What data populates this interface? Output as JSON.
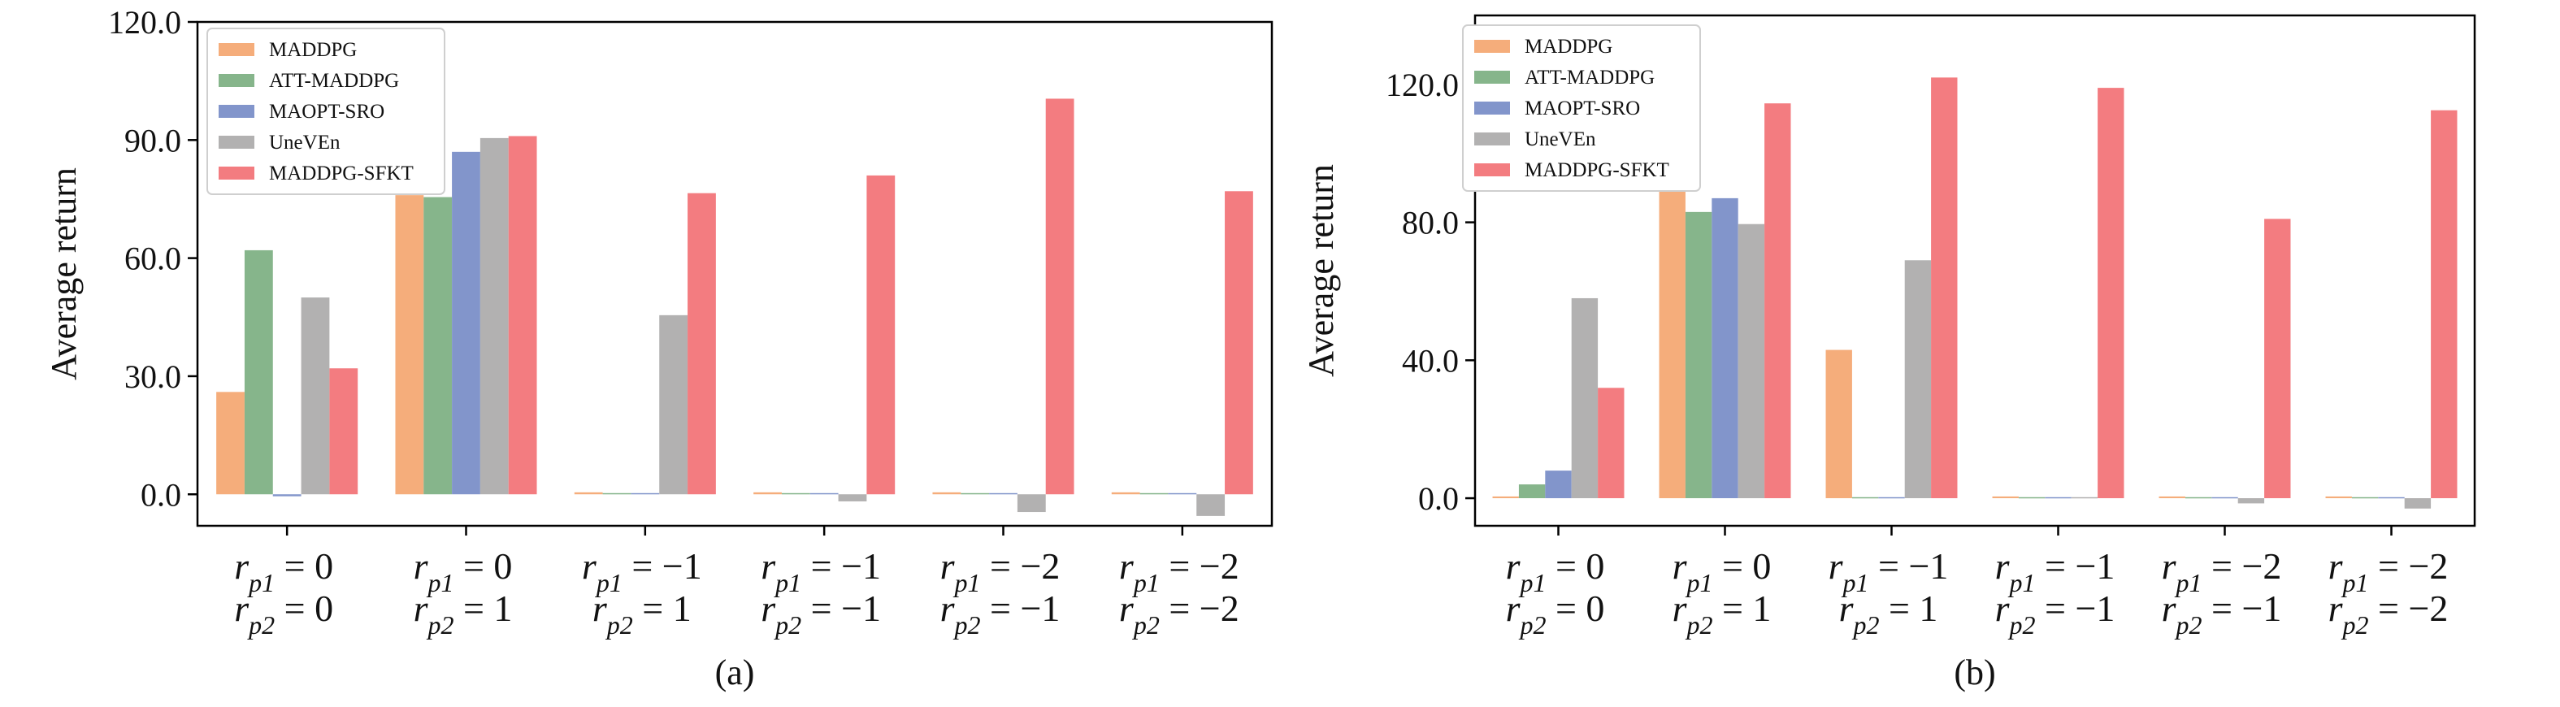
{
  "colors": {
    "MADDPG": "#f5ad7b",
    "ATT-MADDPG": "#86b58b",
    "MAOPT-SRO": "#8295cb",
    "UneVEn": "#b2b1b1",
    "MADDPG-SFKT": "#f37c80"
  },
  "category_labels": [
    {
      "l1": {
        "v": "r",
        "s": "p1",
        "rest": " = 0"
      },
      "l2": {
        "v": "r",
        "s": "p2",
        "rest": " = 0"
      }
    },
    {
      "l1": {
        "v": "r",
        "s": "p1",
        "rest": " = 0"
      },
      "l2": {
        "v": "r",
        "s": "p2",
        "rest": " = 1"
      }
    },
    {
      "l1": {
        "v": "r",
        "s": "p1",
        "rest": " = −1"
      },
      "l2": {
        "v": "r",
        "s": "p2",
        "rest": " = 1"
      }
    },
    {
      "l1": {
        "v": "r",
        "s": "p1",
        "rest": " = −1"
      },
      "l2": {
        "v": "r",
        "s": "p2",
        "rest": " = −1"
      }
    },
    {
      "l1": {
        "v": "r",
        "s": "p1",
        "rest": " = −2"
      },
      "l2": {
        "v": "r",
        "s": "p2",
        "rest": " = −1"
      }
    },
    {
      "l1": {
        "v": "r",
        "s": "p1",
        "rest": " = −2"
      },
      "l2": {
        "v": "r",
        "s": "p2",
        "rest": " = −2"
      }
    }
  ],
  "chart_data": [
    {
      "type": "bar",
      "panel_label": "(a)",
      "ylabel": "Average return",
      "ylim": [
        -8,
        120
      ],
      "yticks": [
        0,
        30,
        60,
        90,
        120
      ],
      "ytick_labels": [
        "0.0",
        "30.0",
        "60.0",
        "90.0",
        "120.0"
      ],
      "grid": false,
      "legend": "top-left",
      "categories": [
        "r_p1 = 0, r_p2 = 0",
        "r_p1 = 0, r_p2 = 1",
        "r_p1 = −1, r_p2 = 1",
        "r_p1 = −1, r_p2 = −1",
        "r_p1 = −2, r_p2 = −1",
        "r_p1 = −2, r_p2 = −2"
      ],
      "series": [
        {
          "name": "MADDPG",
          "values": [
            26,
            76,
            0.5,
            0.5,
            0.5,
            0.5
          ]
        },
        {
          "name": "ATT-MADDPG",
          "values": [
            62,
            75.5,
            0.3,
            0.3,
            0.3,
            0.3
          ]
        },
        {
          "name": "MAOPT-SRO",
          "values": [
            -0.5,
            87,
            0.3,
            0.3,
            0.3,
            0.3
          ]
        },
        {
          "name": "UneVEn",
          "values": [
            50,
            90.5,
            45.5,
            -1.8,
            -4.5,
            -5.5
          ]
        },
        {
          "name": "MADDPG-SFKT",
          "values": [
            32,
            91,
            76.5,
            81,
            100.5,
            77
          ]
        }
      ]
    },
    {
      "type": "bar",
      "panel_label": "(b)",
      "ylabel": "Average return",
      "ylim": [
        -8,
        140
      ],
      "yticks": [
        0,
        40,
        80,
        120
      ],
      "ytick_labels": [
        "0.0",
        "40.0",
        "80.0",
        "120.0"
      ],
      "grid": false,
      "legend": "top-left",
      "categories": [
        "r_p1 = 0, r_p2 = 0",
        "r_p1 = 0, r_p2 = 1",
        "r_p1 = −1, r_p2 = 1",
        "r_p1 = −1, r_p2 = −1",
        "r_p1 = −2, r_p2 = −1",
        "r_p1 = −2, r_p2 = −2"
      ],
      "series": [
        {
          "name": "MADDPG",
          "values": [
            0.5,
            95,
            43,
            0.5,
            0.5,
            0.5
          ]
        },
        {
          "name": "ATT-MADDPG",
          "values": [
            4,
            83,
            0.3,
            0.3,
            0.3,
            0.3
          ]
        },
        {
          "name": "MAOPT-SRO",
          "values": [
            8,
            87,
            0.3,
            0.3,
            0.3,
            0.3
          ]
        },
        {
          "name": "UneVEn",
          "values": [
            58,
            79.5,
            69,
            0.3,
            -1.5,
            -3
          ]
        },
        {
          "name": "MADDPG-SFKT",
          "values": [
            32,
            114.5,
            122,
            119,
            81,
            112.5
          ]
        }
      ]
    }
  ]
}
